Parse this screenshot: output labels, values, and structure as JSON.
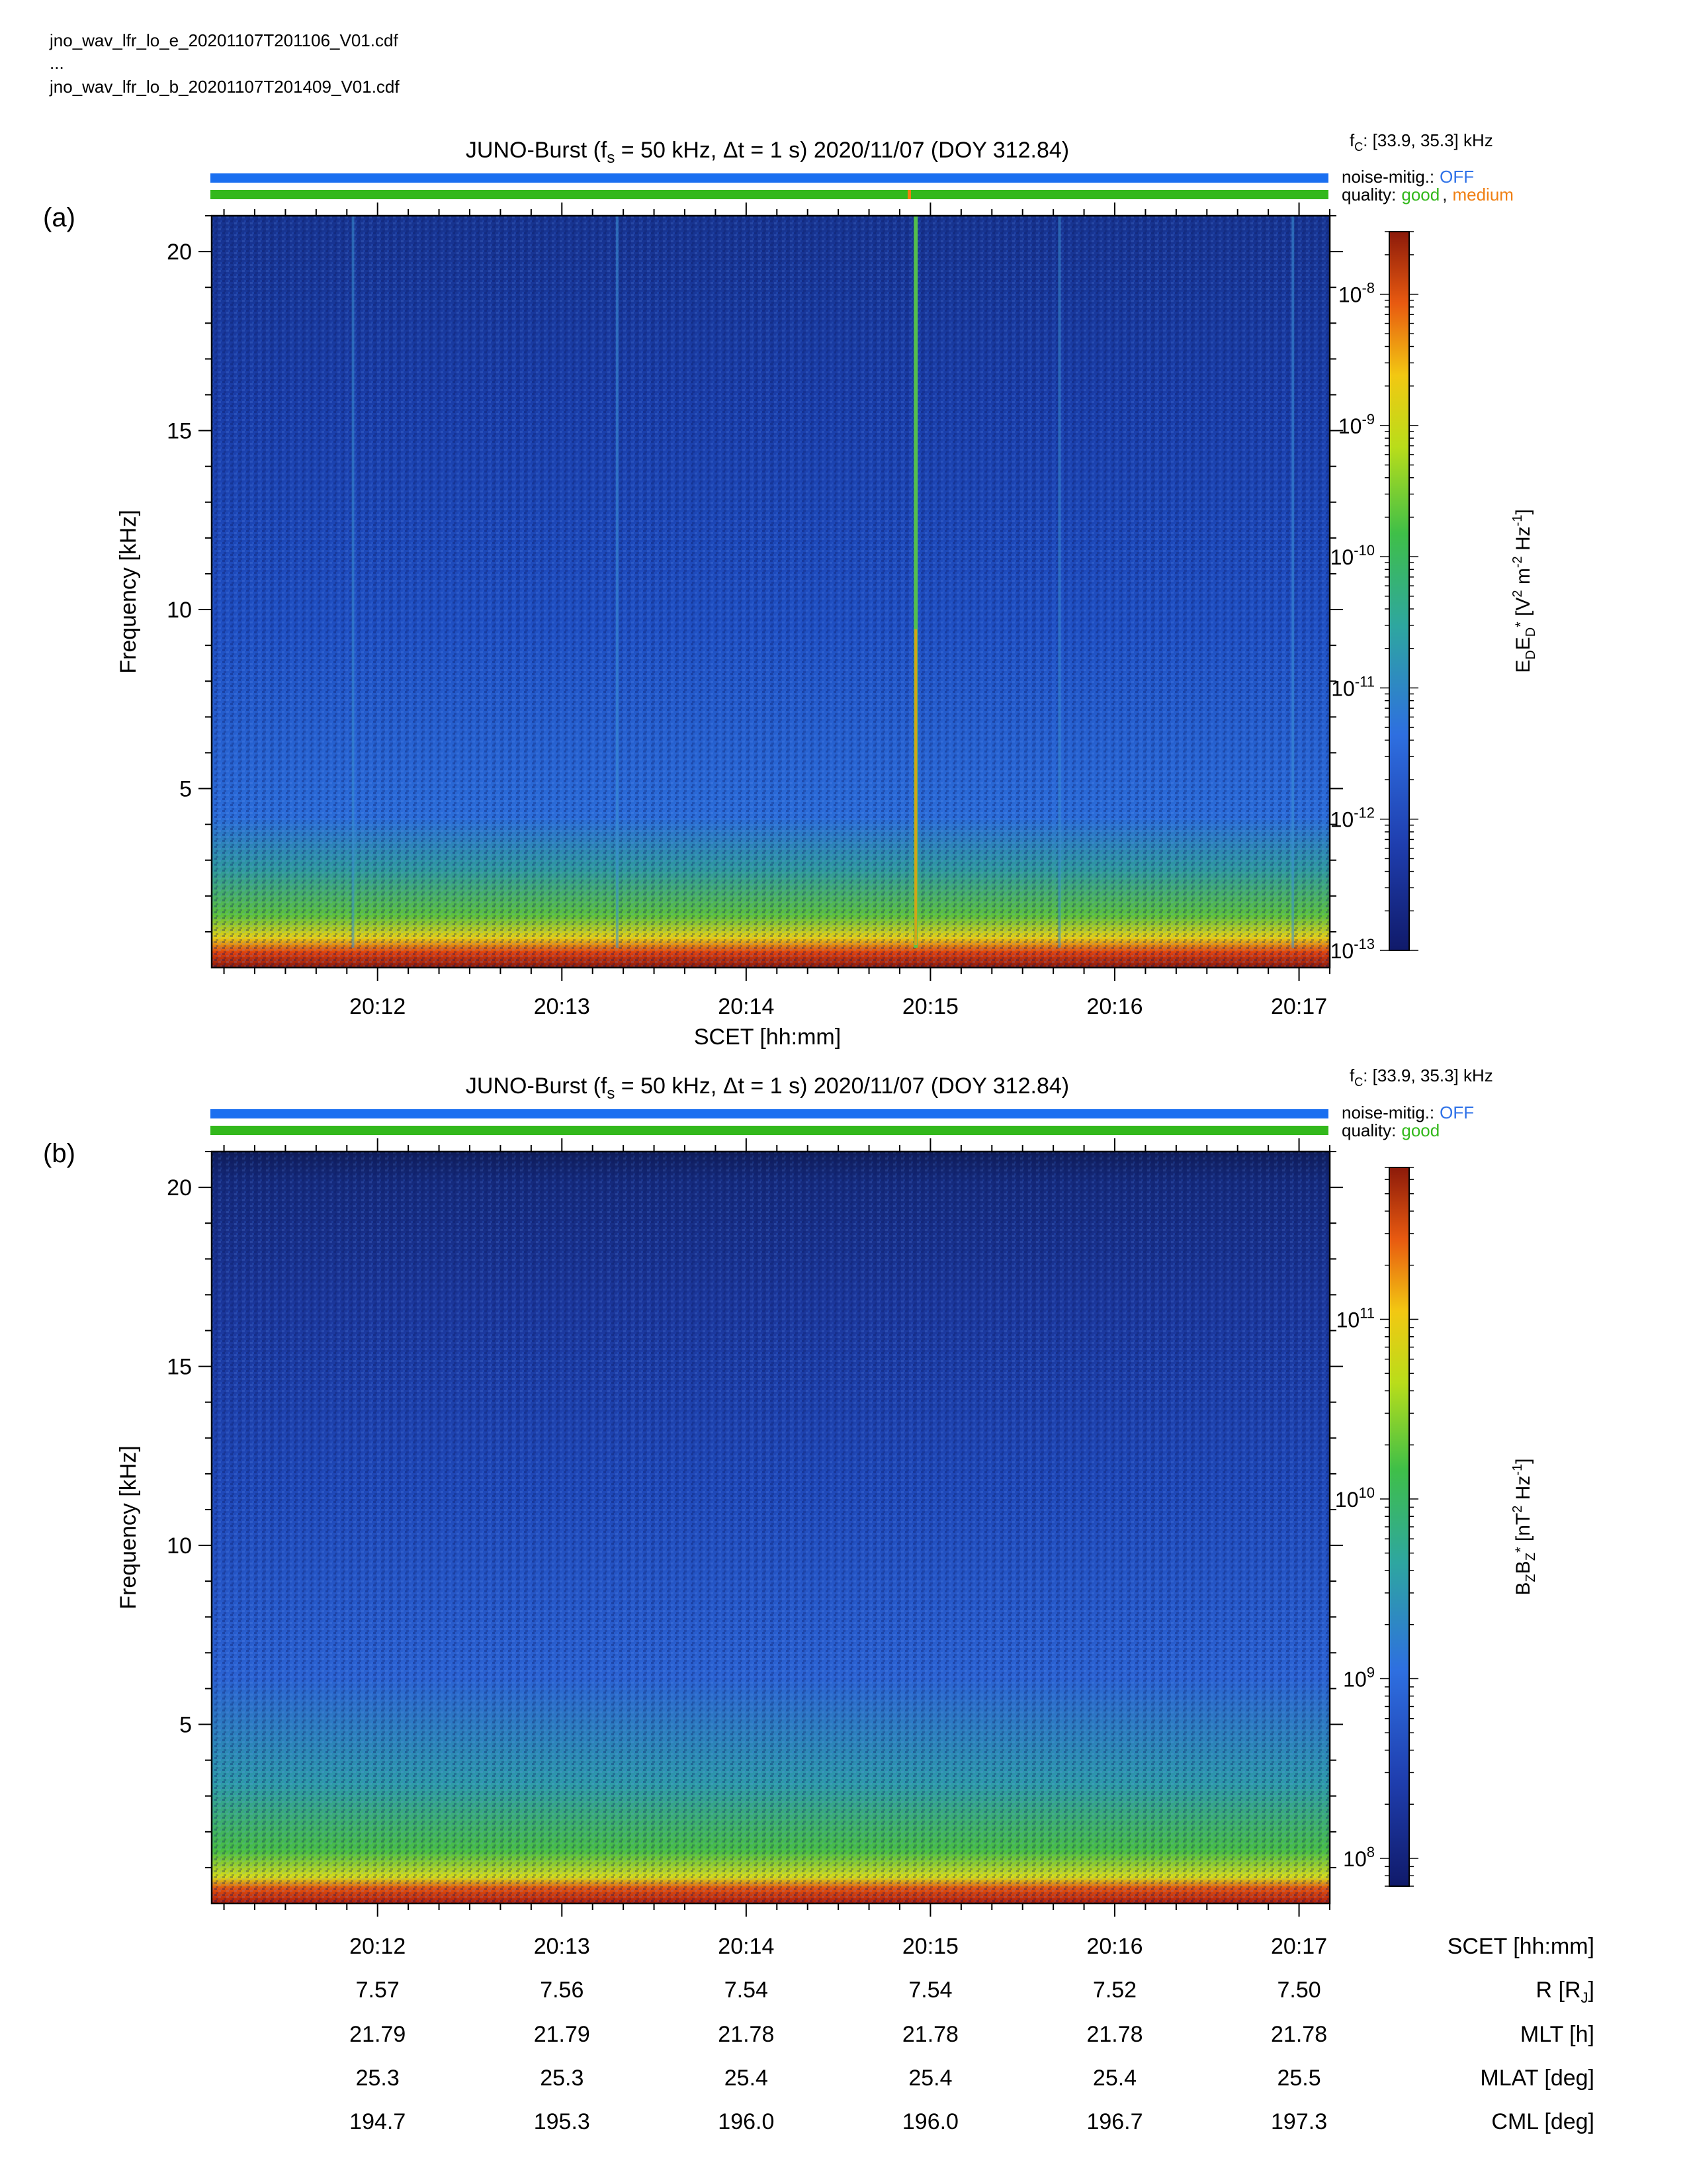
{
  "header": {
    "file_e": "jno_wav_lfr_lo_e_20201107T201106_V01.cdf",
    "ellipsis": "...",
    "file_b": "jno_wav_lfr_lo_b_20201107T201409_V01.cdf"
  },
  "legend_labels": {
    "fc_prefix": "f",
    "fc_sub": "C",
    "fc_value": ": [33.9, 35.3] kHz",
    "noise_label": "noise-mitig.:",
    "noise_value": "OFF",
    "quality_label": "quality:",
    "quality_good": "good",
    "quality_sep": ",",
    "quality_medium": "medium"
  },
  "colors": {
    "noise_bar": "#1a6ff0",
    "quality_good": "#33b81c",
    "quality_medium": "#f07f12",
    "noise_text": "#2f72e8"
  },
  "chart_data": [
    {
      "type": "heatmap",
      "panel_label": "(a)",
      "title": {
        "prefix": "JUNO-Burst (f",
        "sub": "s",
        "rest": " = 50 kHz, Δt = 1 s)  2020/11/07 (DOY 312.84)"
      },
      "ylabel": "Frequency [kHz]",
      "xlabel": "SCET [hh:mm]",
      "ylim": [
        0,
        21
      ],
      "yticks": [
        5,
        10,
        15,
        20
      ],
      "xticks": [
        "20:12",
        "20:13",
        "20:14",
        "20:15",
        "20:16",
        "20:17"
      ],
      "colorbar": {
        "label": "E_D E_D* [V^2 m^-2 Hz^-1]",
        "scale": "log",
        "range": [
          1e-13,
          3e-08
        ],
        "ticks": [
          {
            "exp": "-8",
            "value": 1e-08
          },
          {
            "exp": "-9",
            "value": 1e-09
          },
          {
            "exp": "-10",
            "value": 1e-10
          },
          {
            "exp": "-11",
            "value": 1e-11
          },
          {
            "exp": "-12",
            "value": 1e-12
          },
          {
            "exp": "-13",
            "value": 1e-13
          }
        ]
      },
      "noise_mitigation": "OFF",
      "quality": [
        "good",
        "medium"
      ],
      "bright_lines_time": [
        "20:11:52",
        "20:13:18",
        "20:14:55",
        "20:15:42",
        "20:16:58"
      ]
    },
    {
      "type": "heatmap",
      "panel_label": "(b)",
      "title": {
        "prefix": "JUNO-Burst (f",
        "sub": "s",
        "rest": " = 50 kHz, Δt = 1 s)  2020/11/07 (DOY 312.84)"
      },
      "ylabel": "Frequency [kHz]",
      "ylim": [
        0,
        21
      ],
      "yticks": [
        5,
        10,
        15,
        20
      ],
      "xticks": [
        "20:12",
        "20:13",
        "20:14",
        "20:15",
        "20:16",
        "20:17"
      ],
      "colorbar": {
        "label": "B_Z B_Z* [nT^2 Hz^-1]",
        "scale": "log",
        "range": [
          70000000.0,
          700000000000.0
        ],
        "ticks": [
          {
            "exp": "11",
            "value": 100000000000.0
          },
          {
            "exp": "10",
            "value": 10000000000.0
          },
          {
            "exp": "9",
            "value": 1000000000.0
          },
          {
            "exp": "8",
            "value": 100000000.0
          }
        ]
      },
      "noise_mitigation": "OFF",
      "quality": [
        "good"
      ]
    }
  ],
  "ephemeris": {
    "rows": [
      {
        "label": "SCET [hh:mm]",
        "values": [
          "20:12",
          "20:13",
          "20:14",
          "20:15",
          "20:16",
          "20:17"
        ]
      },
      {
        "label": "R [R_J]",
        "values": [
          "7.57",
          "7.56",
          "7.54",
          "7.54",
          "7.52",
          "7.50"
        ]
      },
      {
        "label": "MLT [h]",
        "values": [
          "21.79",
          "21.79",
          "21.78",
          "21.78",
          "21.78",
          "21.78"
        ]
      },
      {
        "label": "MLAT [deg]",
        "values": [
          "25.3",
          "25.3",
          "25.4",
          "25.4",
          "25.4",
          "25.5"
        ]
      },
      {
        "label": "CML [deg]",
        "values": [
          "194.7",
          "195.3",
          "196.0",
          "196.0",
          "196.7",
          "197.3"
        ]
      }
    ]
  }
}
